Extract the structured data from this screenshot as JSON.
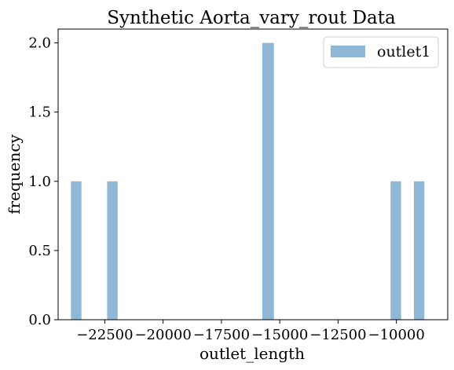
{
  "chart_data": {
    "type": "bar",
    "title": "Synthetic Aorta_vary_rout Data",
    "xlabel": "outlet_length",
    "ylabel": "frequency",
    "xlim": [
      -24500,
      -7800
    ],
    "ylim": [
      0,
      2.1
    ],
    "xticks": [
      -22500,
      -20000,
      -17500,
      -15000,
      -12500,
      -10000
    ],
    "xtick_labels": [
      "−22500",
      "−20000",
      "−17500",
      "−15000",
      "−12500",
      "−10000"
    ],
    "yticks": [
      0,
      0.5,
      1,
      1.5,
      2
    ],
    "ytick_labels": [
      "0.0",
      "0.5",
      "1.0",
      "1.5",
      "2.0"
    ],
    "legend": {
      "position": "top-right",
      "entries": [
        "outlet1"
      ]
    },
    "grid": false,
    "series": [
      {
        "name": "outlet1",
        "color": "#8fb8d8",
        "bins": [
          {
            "x0": -23950,
            "x1": -23500,
            "value": 1
          },
          {
            "x0": -22400,
            "x1": -21950,
            "value": 1
          },
          {
            "x0": -15750,
            "x1": -15250,
            "value": 2
          },
          {
            "x0": -10250,
            "x1": -9800,
            "value": 1
          },
          {
            "x0": -9250,
            "x1": -8800,
            "value": 1
          }
        ]
      }
    ]
  }
}
